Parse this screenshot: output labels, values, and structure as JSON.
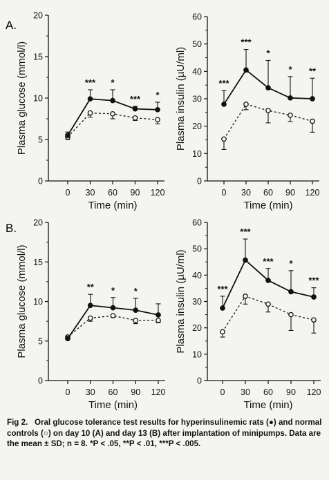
{
  "chart_data": [
    {
      "panel": "A.",
      "type": "line",
      "ylabel": "Plasma glucose (mmol/l)",
      "xlabel": "Time (min)",
      "ylim": [
        0,
        20
      ],
      "yticks": [
        0,
        5,
        10,
        15,
        20
      ],
      "x": [
        0,
        30,
        60,
        90,
        120
      ],
      "series": [
        {
          "marker": "filled",
          "values": [
            5.5,
            9.9,
            9.7,
            8.7,
            8.6
          ],
          "sd": [
            0.4,
            1.1,
            1.3,
            0.3,
            0.9
          ]
        },
        {
          "marker": "open",
          "values": [
            5.3,
            8.2,
            8.1,
            7.6,
            7.4
          ],
          "sd": [
            0.3,
            0.5,
            0.6,
            0.3,
            0.5
          ]
        }
      ],
      "significance": [
        "",
        "***",
        "*",
        "***",
        "*"
      ]
    },
    {
      "panel": "",
      "type": "line",
      "ylabel": "Plasma insulin (µU/ml)",
      "xlabel": "Time (min)",
      "ylim": [
        0,
        60
      ],
      "yticks": [
        0,
        10,
        20,
        30,
        40,
        50,
        60
      ],
      "x": [
        0,
        30,
        60,
        90,
        120
      ],
      "series": [
        {
          "marker": "filled",
          "values": [
            28,
            40.5,
            34,
            30.3,
            30
          ],
          "sd": [
            5,
            7.5,
            10,
            7.8,
            7.5
          ]
        },
        {
          "marker": "open",
          "values": [
            15.3,
            28,
            25.7,
            24,
            21.8
          ],
          "sd": [
            3.8,
            2,
            4.5,
            2.3,
            4
          ]
        }
      ],
      "significance": [
        "***",
        "***",
        "*",
        "*",
        "**"
      ]
    },
    {
      "panel": "B.",
      "type": "line",
      "ylabel": "Plasma glucose (mmol/l)",
      "xlabel": "Time (min)",
      "ylim": [
        0,
        20
      ],
      "yticks": [
        0,
        5,
        10,
        15,
        20
      ],
      "x": [
        0,
        30,
        60,
        90,
        120
      ],
      "series": [
        {
          "marker": "filled",
          "values": [
            5.3,
            9.5,
            9.2,
            8.9,
            8.3
          ],
          "sd": [
            0.3,
            1.4,
            1.3,
            1.5,
            1.4
          ]
        },
        {
          "marker": "open",
          "values": [
            5.5,
            7.9,
            8.2,
            7.6,
            7.6
          ],
          "sd": [
            0.3,
            0.4,
            0.2,
            0.4,
            0.3
          ]
        }
      ],
      "significance": [
        "",
        "**",
        "*",
        "*",
        ""
      ]
    },
    {
      "panel": "",
      "type": "line",
      "ylabel": "Plasma insulin (µU/ml)",
      "xlabel": "Time (min)",
      "ylim": [
        0,
        60
      ],
      "yticks": [
        0,
        10,
        20,
        30,
        40,
        50,
        60
      ],
      "x": [
        0,
        30,
        60,
        90,
        120
      ],
      "series": [
        {
          "marker": "filled",
          "values": [
            27.5,
            45.7,
            38,
            33.7,
            31.7
          ],
          "sd": [
            4.5,
            8,
            4.5,
            8,
            3.5
          ]
        },
        {
          "marker": "open",
          "values": [
            18.5,
            32,
            29,
            25,
            23
          ],
          "sd": [
            2,
            3,
            3,
            6,
            5
          ]
        }
      ],
      "significance": [
        "***",
        "***",
        "***",
        "*",
        "***"
      ]
    }
  ],
  "caption": {
    "heading": "Fig 2.",
    "text": "Oral glucose tolerance test results for hyperinsulinemic rats (●) and normal controls (○) on day 10 (A) and day 13 (B) after implantation of minipumps. Data are the mean ± SD; n = 8. *P < .05, **P < .01, ***P < .005."
  }
}
